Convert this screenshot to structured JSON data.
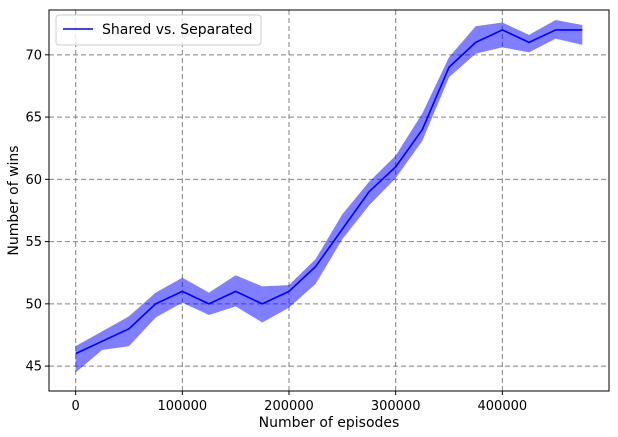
{
  "chart_data": {
    "type": "line",
    "title": "",
    "xlabel": "Number of episodes",
    "ylabel": "Number of wins",
    "xlim": [
      -25000,
      500000
    ],
    "ylim": [
      43.0,
      73.6
    ],
    "xticks": [
      0,
      100000,
      200000,
      300000,
      400000
    ],
    "xtick_labels": [
      "0",
      "100000",
      "200000",
      "300000",
      "400000"
    ],
    "yticks": [
      45,
      50,
      55,
      60,
      65,
      70
    ],
    "ytick_labels": [
      "45",
      "50",
      "55",
      "60",
      "65",
      "70"
    ],
    "grid": true,
    "legend_position": "top-left",
    "series": [
      {
        "name": "Shared vs. Separated",
        "color": "#0000ff",
        "band_color": "#0000ff",
        "x": [
          0,
          25000,
          50000,
          75000,
          100000,
          125000,
          150000,
          175000,
          200000,
          225000,
          250000,
          275000,
          300000,
          325000,
          350000,
          375000,
          400000,
          425000,
          450000,
          475000
        ],
        "y": [
          46.0,
          47.0,
          48.0,
          50.0,
          51.0,
          50.0,
          51.0,
          50.0,
          51.0,
          53.0,
          56.0,
          59.0,
          61.0,
          64.0,
          69.0,
          71.0,
          72.0,
          71.0,
          72.0,
          72.0
        ],
        "lower": [
          44.5,
          46.3,
          46.6,
          48.9,
          50.1,
          49.1,
          49.8,
          48.5,
          49.7,
          51.6,
          55.2,
          57.9,
          60.1,
          63.1,
          68.2,
          70.1,
          70.6,
          70.2,
          71.3,
          70.8
        ],
        "upper": [
          46.6,
          47.8,
          49.0,
          50.9,
          52.1,
          50.9,
          52.3,
          51.4,
          51.5,
          53.6,
          57.2,
          59.8,
          61.9,
          65.3,
          69.8,
          72.3,
          72.6,
          71.6,
          72.8,
          72.4
        ]
      }
    ]
  }
}
